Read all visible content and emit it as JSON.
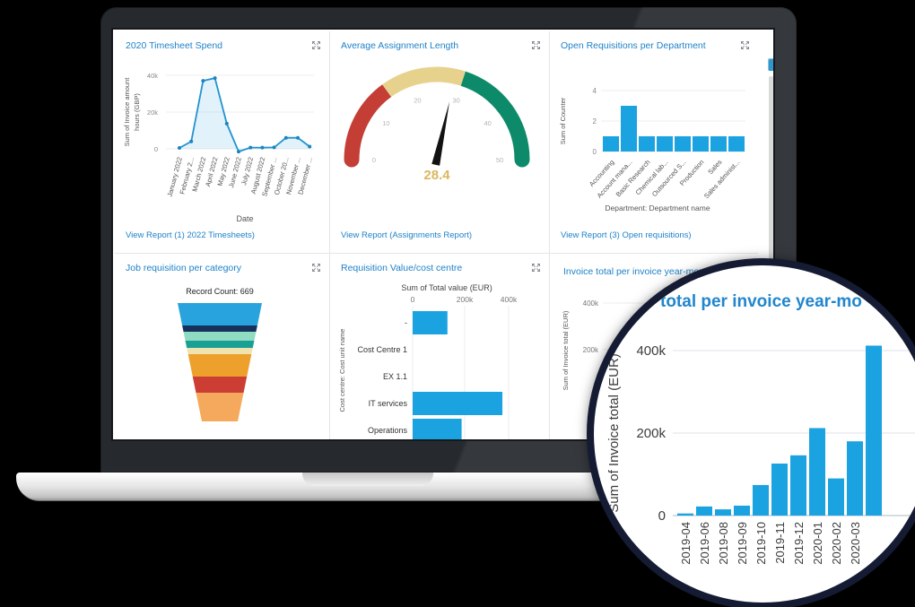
{
  "colors": {
    "accent_blue": "#1e82c8",
    "bar_blue": "#1ba2e0",
    "gauge_value": "#d9b85f",
    "magnifier_ring": "#141b33"
  },
  "panels": [
    {
      "title": "2020 Timesheet Spend",
      "link": "View Report (1) 2022 Timesheets)"
    },
    {
      "title": "Average Assignment Length",
      "link": "View Report (Assignments Report)"
    },
    {
      "title": "Open Requisitions per Department",
      "link": "View Report (3) Open requisitions)"
    },
    {
      "title": "Job requisition per category"
    },
    {
      "title": "Requisition Value/cost centre"
    },
    {
      "title": "Invoice total per invoice year-month"
    }
  ],
  "magnifier": {
    "title_fragment": "total per invoice year-mo"
  },
  "chart_data": [
    {
      "panel": "2020 Timesheet Spend",
      "type": "area",
      "ylabel_lines": [
        "Sum of Invoice amount",
        "hours (GBP)"
      ],
      "xlabel": "Date",
      "yticks": [
        "40k",
        "20k",
        "0"
      ],
      "ylim": [
        0,
        40000
      ],
      "categories": [
        "January 2022",
        "February 2...",
        "March 2022",
        "April 2022",
        "May 2022",
        "June 2022",
        "July 2022",
        "August 2022",
        "September ...",
        "October 20...",
        "November ...",
        "December ..."
      ],
      "values": [
        500,
        4000,
        37000,
        38500,
        13700,
        -1500,
        700,
        700,
        800,
        6000,
        6000,
        1200
      ]
    },
    {
      "panel": "Average Assignment Length",
      "type": "gauge",
      "min": 0,
      "max": 50,
      "value": 28.4,
      "ticks": [
        0,
        10,
        20,
        30,
        40,
        50
      ],
      "bands": [
        {
          "from": 0,
          "to": 15,
          "color": "#c43e35"
        },
        {
          "from": 15,
          "to": 30,
          "color": "#e7d28d"
        },
        {
          "from": 30,
          "to": 50,
          "color": "#0d8a6a"
        }
      ]
    },
    {
      "panel": "Open Requisitions per Department",
      "type": "bar",
      "ylabel": "Sum of Counter",
      "xlabel": "Department: Department name",
      "yticks": [
        4,
        2,
        0
      ],
      "ylim": [
        0,
        4
      ],
      "categories": [
        "Accounting",
        "Account mana...",
        "Basic Research",
        "Chemical lab...",
        "Outsourced S...",
        "Production",
        "Sales",
        "Sales administ..."
      ],
      "values": [
        1,
        3,
        1,
        1,
        1,
        1,
        1,
        1
      ]
    },
    {
      "panel": "Job requisition per category",
      "type": "funnel",
      "annotation": "Record Count: 669",
      "segments": [
        {
          "color": "#29a3dd",
          "height": 25
        },
        {
          "color": "#16325c",
          "height": 7
        },
        {
          "color": "#8fdcc2",
          "height": 10
        },
        {
          "color": "#17a093",
          "height": 8
        },
        {
          "color": "#efe3b0",
          "height": 7
        },
        {
          "color": "#eda12c",
          "height": 25
        },
        {
          "color": "#cc3e33",
          "height": 18
        },
        {
          "color": "#f5a95c",
          "height": 32
        }
      ]
    },
    {
      "panel": "Requisition Value/cost centre",
      "type": "hbar",
      "axis_title": "Sum of Total value (EUR)",
      "xticks": [
        "0",
        "200k",
        "400k"
      ],
      "xlim": [
        0,
        400000
      ],
      "ylabel": "Cost centre: Cost unit name",
      "categories": [
        "-",
        "Cost Centre 1",
        "EX 1.1",
        "IT services",
        "Operations"
      ],
      "values": [
        145000,
        0,
        0,
        374000,
        204000
      ]
    },
    {
      "panel": "Invoice total per invoice year-month",
      "type": "bar",
      "ylabel": "Sum of Invoice total (EUR)",
      "yticks": [
        "400k",
        "200k"
      ],
      "ylim": [
        0,
        400000
      ],
      "categories": [
        "2019-04",
        "2019-06",
        "2019-08",
        "2019-09",
        "2019-10",
        "2019-11",
        "2019-12",
        "2020-01",
        "2020-02",
        "2020-03",
        ""
      ],
      "values": [
        5000,
        22000,
        15000,
        24000,
        74000,
        126000,
        146000,
        212000,
        90000,
        180000,
        412000
      ]
    },
    {
      "panel": "magnifier-zoom",
      "type": "bar",
      "ylabel": "Sum of Invoice total (EUR)",
      "yticks": [
        "400k",
        "200k",
        "0"
      ],
      "ylim": [
        0,
        400000
      ],
      "categories": [
        "2019-04",
        "2019-06",
        "2019-08",
        "2019-09",
        "2019-10",
        "2019-11",
        "2019-12",
        "2020-01",
        "2020-02",
        "2020-03",
        ""
      ],
      "values": [
        5000,
        22000,
        15000,
        24000,
        74000,
        126000,
        146000,
        212000,
        90000,
        180000,
        412000
      ]
    }
  ]
}
